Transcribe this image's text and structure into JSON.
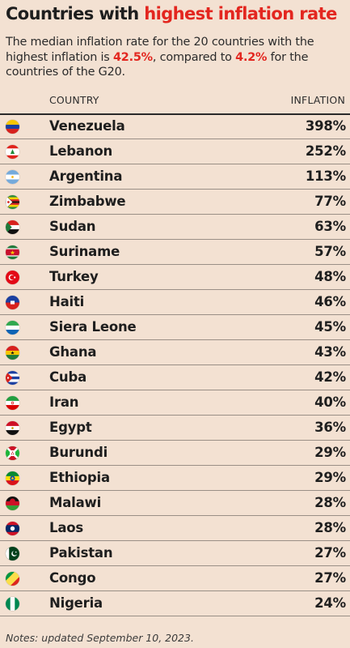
{
  "title": {
    "part1": "Countries with ",
    "highlight": "highest inflation rate"
  },
  "subtitle": {
    "part1": "The median inflation rate for the 20 countries with the highest inflation is ",
    "value1": "42.5%",
    "part2": ", compared to ",
    "value2": "4.2%",
    "part3": " for the countries of the G20."
  },
  "colors": {
    "accent": "#e3261f",
    "background": "#f3e1d2",
    "text": "#1e1e1e"
  },
  "chart_data": {
    "type": "table",
    "columns": [
      "COUNTRY",
      "INFLATION"
    ],
    "rows": [
      {
        "country": "Venezuela",
        "inflation": 398,
        "label": "398%",
        "flag": "venezuela-flag-icon"
      },
      {
        "country": "Lebanon",
        "inflation": 252,
        "label": "252%",
        "flag": "lebanon-flag-icon"
      },
      {
        "country": "Argentina",
        "inflation": 113,
        "label": "113%",
        "flag": "argentina-flag-icon"
      },
      {
        "country": "Zimbabwe",
        "inflation": 77,
        "label": "77%",
        "flag": "zimbabwe-flag-icon"
      },
      {
        "country": "Sudan",
        "inflation": 63,
        "label": "63%",
        "flag": "sudan-flag-icon"
      },
      {
        "country": "Suriname",
        "inflation": 57,
        "label": "57%",
        "flag": "suriname-flag-icon"
      },
      {
        "country": "Turkey",
        "inflation": 48,
        "label": "48%",
        "flag": "turkey-flag-icon"
      },
      {
        "country": "Haiti",
        "inflation": 46,
        "label": "46%",
        "flag": "haiti-flag-icon"
      },
      {
        "country": "Siera Leone",
        "inflation": 45,
        "label": "45%",
        "flag": "sierra-leone-flag-icon"
      },
      {
        "country": "Ghana",
        "inflation": 43,
        "label": "43%",
        "flag": "ghana-flag-icon"
      },
      {
        "country": "Cuba",
        "inflation": 42,
        "label": "42%",
        "flag": "cuba-flag-icon"
      },
      {
        "country": "Iran",
        "inflation": 40,
        "label": "40%",
        "flag": "iran-flag-icon"
      },
      {
        "country": "Egypt",
        "inflation": 36,
        "label": "36%",
        "flag": "egypt-flag-icon"
      },
      {
        "country": "Burundi",
        "inflation": 29,
        "label": "29%",
        "flag": "burundi-flag-icon"
      },
      {
        "country": "Ethiopia",
        "inflation": 29,
        "label": "29%",
        "flag": "ethiopia-flag-icon"
      },
      {
        "country": "Malawi",
        "inflation": 28,
        "label": "28%",
        "flag": "malawi-flag-icon"
      },
      {
        "country": "Laos",
        "inflation": 28,
        "label": "28%",
        "flag": "laos-flag-icon"
      },
      {
        "country": "Pakistan",
        "inflation": 27,
        "label": "27%",
        "flag": "pakistan-flag-icon"
      },
      {
        "country": "Congo",
        "inflation": 27,
        "label": "27%",
        "flag": "congo-flag-icon"
      },
      {
        "country": "Nigeria",
        "inflation": 24,
        "label": "24%",
        "flag": "nigeria-flag-icon"
      }
    ]
  },
  "notes": "Notes: updated September 10, 2023."
}
